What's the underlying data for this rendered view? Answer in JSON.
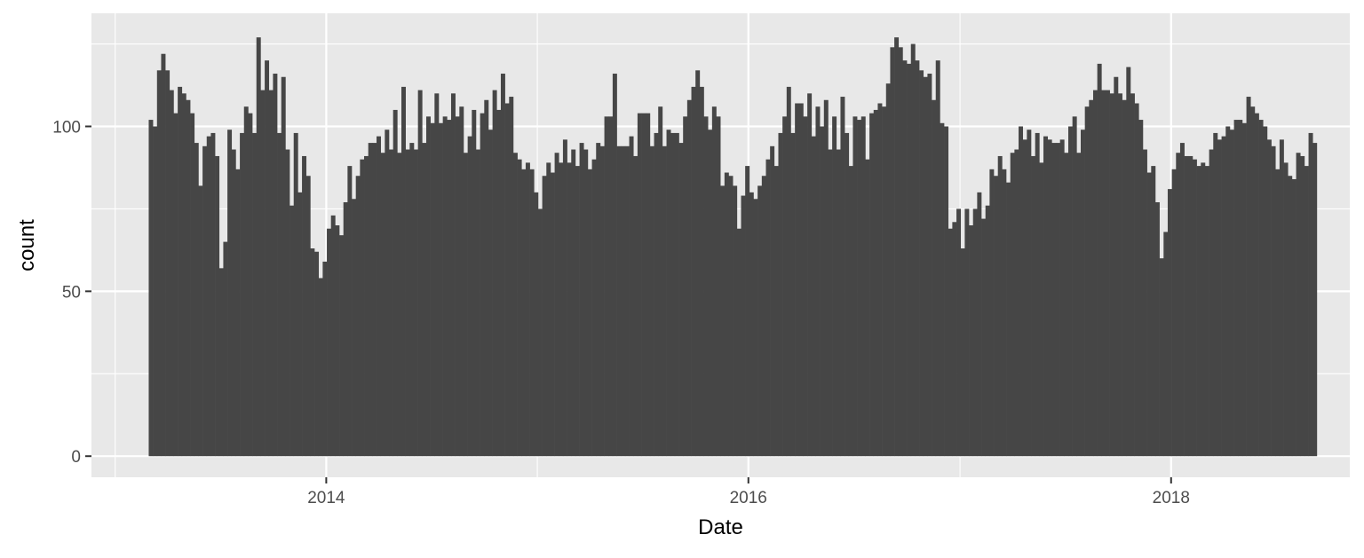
{
  "chart_data": {
    "type": "bar",
    "title": "",
    "xlabel": "Date",
    "ylabel": "count",
    "x_type": "date",
    "x_range": [
      "2012-11-21",
      "2018-11-06"
    ],
    "ylim": [
      -6.4,
      134.3
    ],
    "x_ticks": [
      {
        "value": "2014-01-01",
        "label": "2014"
      },
      {
        "value": "2016-01-01",
        "label": "2016"
      },
      {
        "value": "2018-01-01",
        "label": "2018"
      }
    ],
    "x_minor_ticks": [
      "2013-01-01",
      "2015-01-01",
      "2017-01-01"
    ],
    "y_ticks": [
      0,
      50,
      100
    ],
    "y_minor_ticks": [
      25,
      75,
      125
    ],
    "bin_start": "2013-02-28",
    "bin_end": "2018-09-10",
    "values": [
      102,
      100,
      117,
      122,
      117,
      111,
      104,
      112,
      110,
      108,
      104,
      95,
      82,
      94,
      97,
      98,
      91,
      57,
      65,
      99,
      93,
      87,
      98,
      106,
      104,
      98,
      127,
      111,
      120,
      111,
      116,
      98,
      115,
      93,
      76,
      98,
      80,
      91,
      85,
      63,
      62,
      54,
      59,
      69,
      73,
      70,
      67,
      77,
      88,
      78,
      85,
      90,
      91,
      95,
      95,
      97,
      92,
      99,
      93,
      105,
      92,
      112,
      93,
      95,
      93,
      111,
      95,
      103,
      101,
      110,
      101,
      103,
      102,
      110,
      103,
      106,
      92,
      97,
      105,
      93,
      104,
      108,
      99,
      111,
      105,
      116,
      107,
      109,
      92,
      90,
      87,
      89,
      87,
      80,
      75,
      85,
      89,
      86,
      92,
      89,
      96,
      89,
      93,
      88,
      95,
      93,
      87,
      90,
      95,
      94,
      103,
      103,
      116,
      94,
      94,
      94,
      97,
      91,
      104,
      104,
      104,
      94,
      98,
      106,
      94,
      99,
      98,
      98,
      95,
      103,
      108,
      112,
      117,
      112,
      103,
      99,
      106,
      103,
      82,
      86,
      85,
      82,
      69,
      79,
      88,
      80,
      78,
      82,
      85,
      90,
      94,
      88,
      98,
      103,
      112,
      98,
      107,
      107,
      103,
      110,
      97,
      106,
      100,
      108,
      93,
      103,
      93,
      109,
      98,
      88,
      103,
      102,
      103,
      90,
      104,
      105,
      107,
      106,
      113,
      124,
      127,
      124,
      120,
      119,
      125,
      120,
      117,
      115,
      116,
      108,
      120,
      101,
      100,
      69,
      71,
      75,
      63,
      75,
      70,
      75,
      80,
      72,
      76,
      87,
      85,
      91,
      87,
      83,
      92,
      93,
      100,
      96,
      99,
      91,
      98,
      89,
      97,
      96,
      95,
      95,
      96,
      92,
      100,
      103,
      92,
      99,
      106,
      108,
      111,
      119,
      111,
      111,
      110,
      115,
      110,
      108,
      118,
      110,
      107,
      102,
      93,
      86,
      88,
      77,
      60,
      68,
      81,
      87,
      92,
      95,
      91,
      91,
      90,
      88,
      89,
      88,
      93,
      98,
      96,
      97,
      100,
      99,
      102,
      102,
      101,
      109,
      106,
      104,
      102,
      100,
      96,
      94,
      87,
      96,
      89,
      85,
      84,
      92,
      91,
      88,
      98,
      95
    ],
    "bar_color": "#464646",
    "panel_background": "#e8e8e8",
    "grid_color": "#ffffff"
  }
}
